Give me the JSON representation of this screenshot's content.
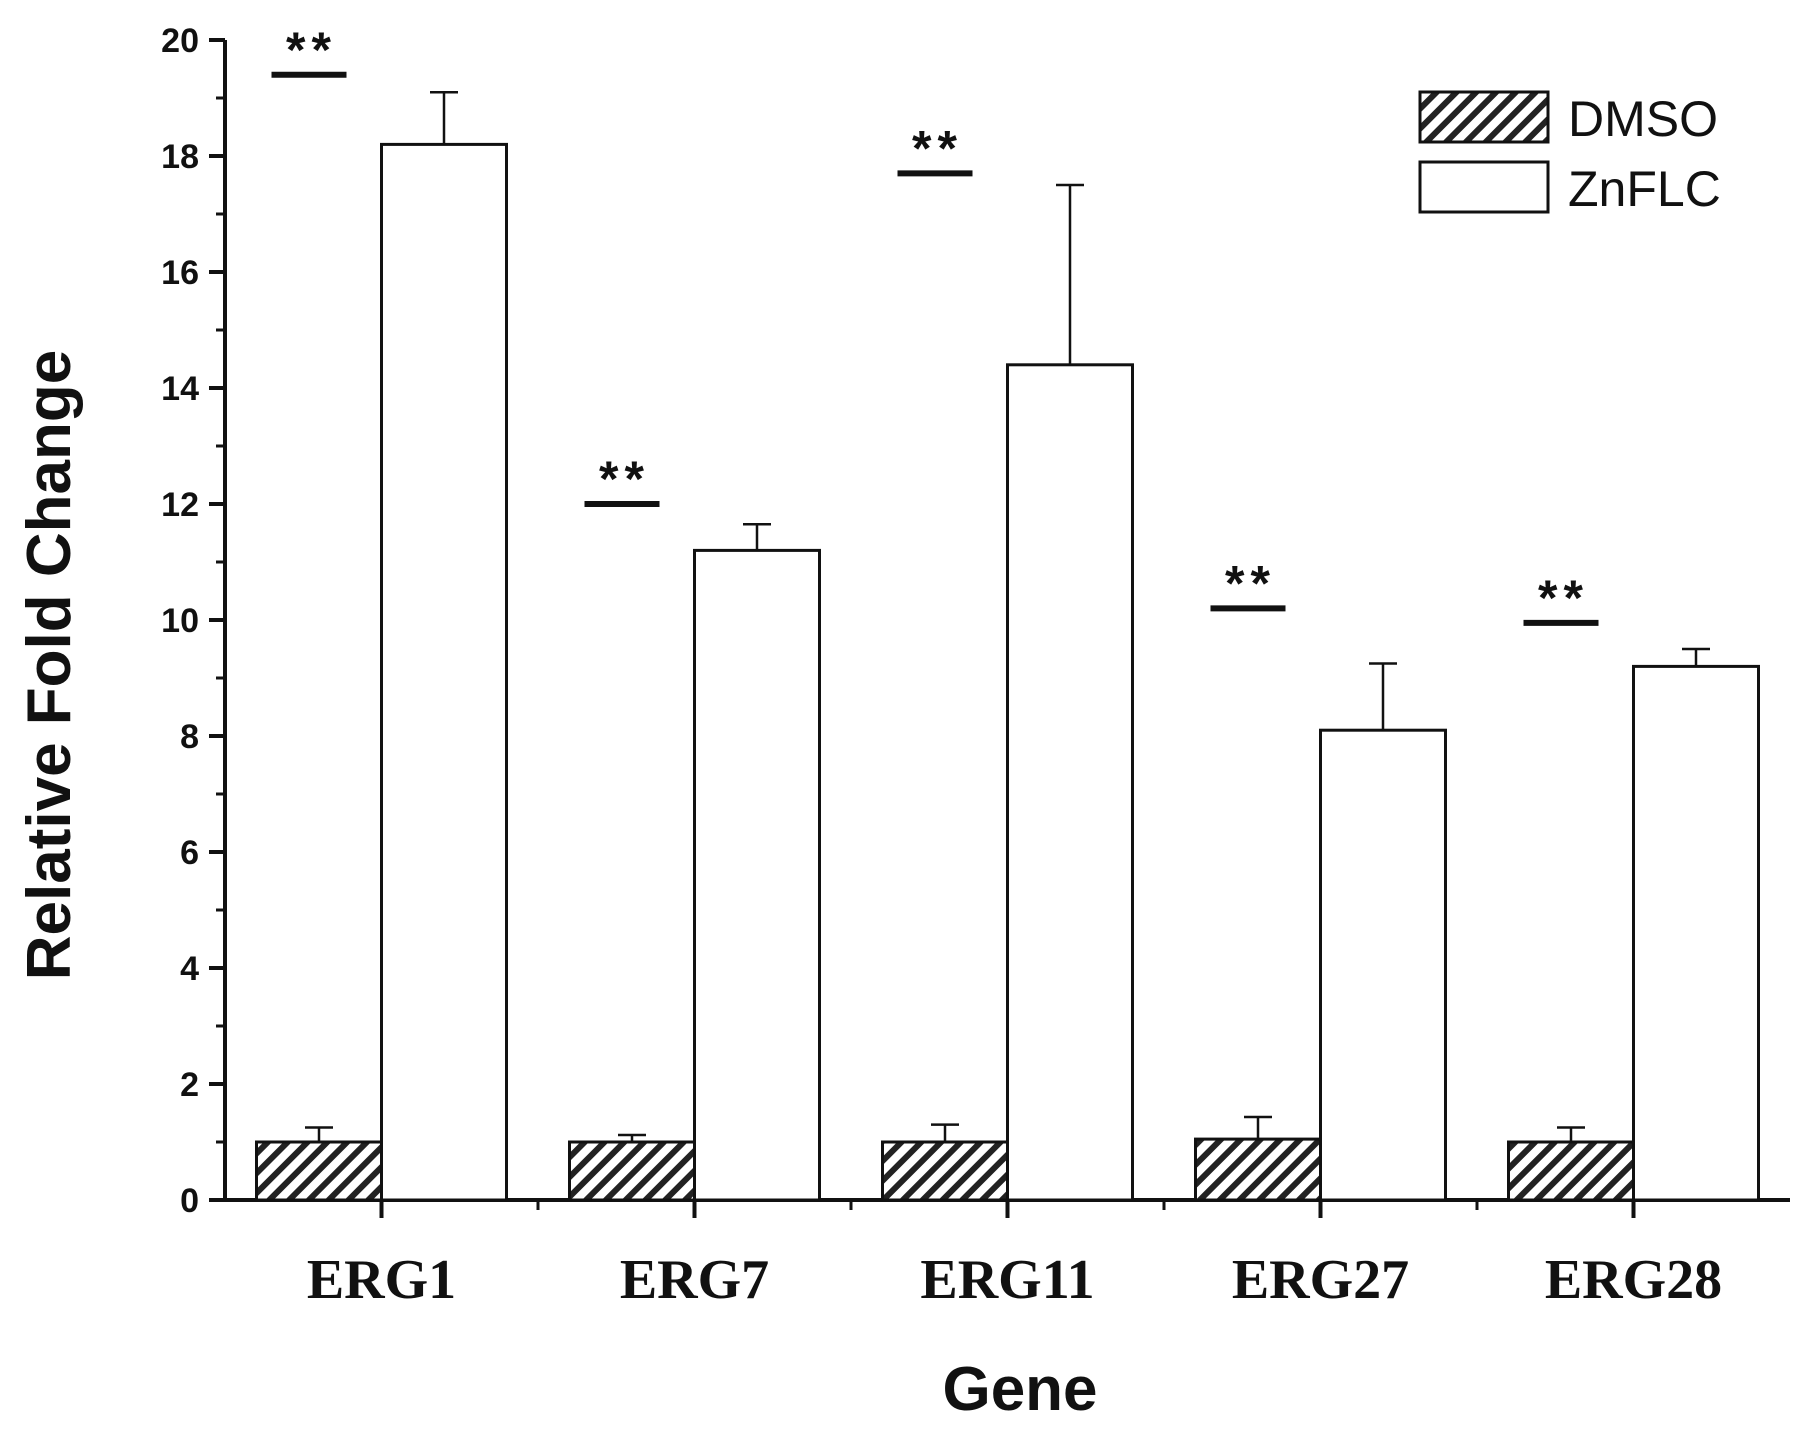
{
  "chart_data": {
    "type": "bar",
    "title": "",
    "xlabel": "Gene",
    "ylabel": "Relative Fold Change",
    "ylim": [
      0,
      20
    ],
    "yticks": [
      0,
      2,
      4,
      6,
      8,
      10,
      12,
      14,
      16,
      18,
      20
    ],
    "categories": [
      "ERG1",
      "ERG7",
      "ERG11",
      "ERG27",
      "ERG28"
    ],
    "series": [
      {
        "name": "DMSO",
        "pattern": "diagonal-hatch",
        "color": "#000000",
        "values": [
          1.0,
          1.0,
          1.0,
          1.05,
          1.0
        ],
        "errors": [
          0.25,
          0.12,
          0.3,
          0.38,
          0.25
        ]
      },
      {
        "name": "ZnFLC",
        "pattern": "none",
        "color": "#ffffff",
        "values": [
          18.2,
          11.2,
          14.4,
          8.1,
          9.2
        ],
        "errors": [
          0.9,
          0.45,
          3.1,
          1.15,
          0.3
        ]
      }
    ],
    "significance": [
      {
        "category": "ERG1",
        "label": "**",
        "y": 19.4
      },
      {
        "category": "ERG7",
        "label": "**",
        "y": 12.0
      },
      {
        "category": "ERG11",
        "label": "**",
        "y": 17.7
      },
      {
        "category": "ERG27",
        "label": "**",
        "y": 10.2
      },
      {
        "category": "ERG28",
        "label": "**",
        "y": 9.95
      }
    ],
    "legend": {
      "position": "top-right"
    },
    "grid": false
  }
}
